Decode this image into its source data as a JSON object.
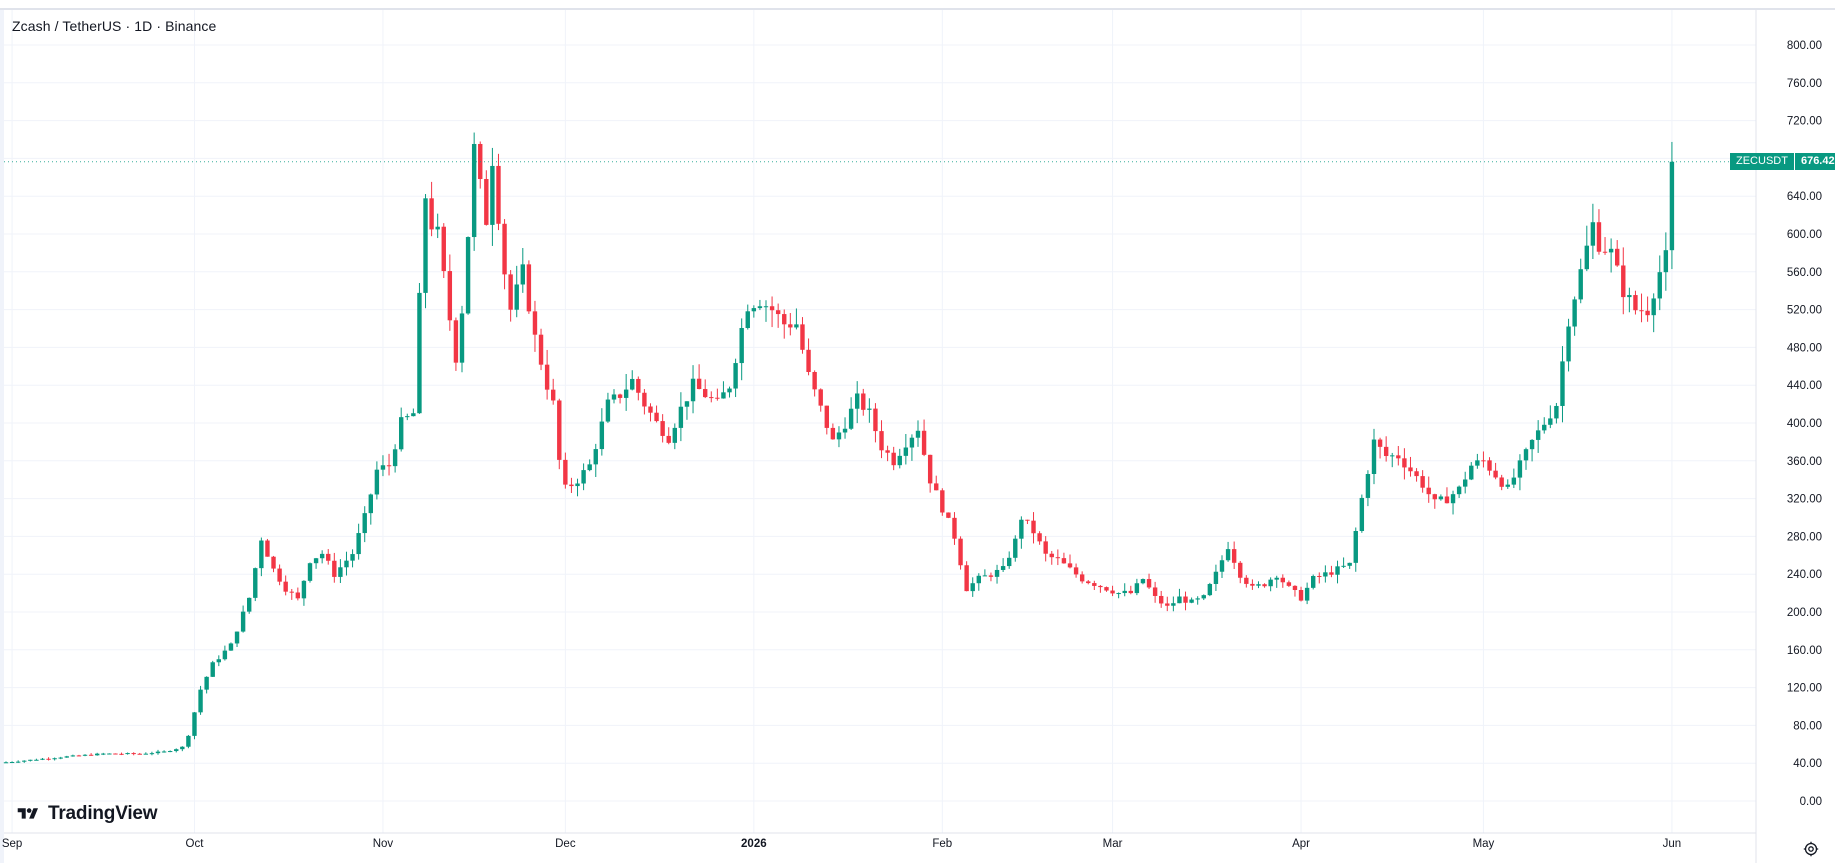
{
  "header": {
    "symbol_title": "Zcash / TetherUS · 1D · Binance"
  },
  "branding": {
    "logo_text": "TradingView"
  },
  "price_tag": {
    "symbol": "ZECUSDT",
    "value": "676.42"
  },
  "colors": {
    "up": "#089981",
    "down": "#f23645",
    "grid": "#f0f3fa",
    "text": "#131722"
  },
  "chart_data": {
    "type": "candlestick",
    "title": "Zcash / TetherUS · 1D · Binance",
    "y_ticks": [
      "800.00",
      "760.00",
      "720.00",
      "680.00",
      "640.00",
      "600.00",
      "560.00",
      "520.00",
      "480.00",
      "440.00",
      "400.00",
      "360.00",
      "320.00",
      "280.00",
      "240.00",
      "200.00",
      "160.00",
      "120.00",
      "80.00",
      "40.00",
      "0.00"
    ],
    "ylim": [
      0,
      800
    ],
    "x_ticks": [
      {
        "label": "Sep",
        "date": "2025-09-01"
      },
      {
        "label": "Oct",
        "date": "2025-10-01"
      },
      {
        "label": "Nov",
        "date": "2025-11-01"
      },
      {
        "label": "Dec",
        "date": "2025-12-01"
      },
      {
        "label": "2026",
        "date": "2026-01-01",
        "bold": true
      },
      {
        "label": "Feb",
        "date": "2026-02-01"
      },
      {
        "label": "Mar",
        "date": "2026-03-01"
      },
      {
        "label": "Apr",
        "date": "2026-04-01"
      },
      {
        "label": "May",
        "date": "2026-05-01"
      },
      {
        "label": "Jun",
        "date": "2026-06-01"
      }
    ],
    "last_price": 676.42,
    "close_anchors": [
      [
        "2025-08-31",
        41
      ],
      [
        "2025-09-10",
        47
      ],
      [
        "2025-09-16",
        50
      ],
      [
        "2025-09-22",
        50
      ],
      [
        "2025-09-26",
        52
      ],
      [
        "2025-09-29",
        57
      ],
      [
        "2025-09-30",
        70
      ],
      [
        "2025-10-02",
        118
      ],
      [
        "2025-10-04",
        145
      ],
      [
        "2025-10-07",
        165
      ],
      [
        "2025-10-10",
        215
      ],
      [
        "2025-10-12",
        278
      ],
      [
        "2025-10-14",
        245
      ],
      [
        "2025-10-16",
        225
      ],
      [
        "2025-10-18",
        213
      ],
      [
        "2025-10-20",
        255
      ],
      [
        "2025-10-22",
        262
      ],
      [
        "2025-10-24",
        240
      ],
      [
        "2025-10-27",
        262
      ],
      [
        "2025-10-29",
        300
      ],
      [
        "2025-10-31",
        350
      ],
      [
        "2025-11-02",
        355
      ],
      [
        "2025-11-04",
        400
      ],
      [
        "2025-11-06",
        410
      ],
      [
        "2025-11-07",
        530
      ],
      [
        "2025-11-08",
        640
      ],
      [
        "2025-11-09",
        610
      ],
      [
        "2025-11-10",
        600
      ],
      [
        "2025-11-12",
        510
      ],
      [
        "2025-11-13",
        470
      ],
      [
        "2025-11-14",
        520
      ],
      [
        "2025-11-15",
        600
      ],
      [
        "2025-11-16",
        690
      ],
      [
        "2025-11-17",
        650
      ],
      [
        "2025-11-18",
        615
      ],
      [
        "2025-11-19",
        680
      ],
      [
        "2025-11-21",
        560
      ],
      [
        "2025-11-22",
        520
      ],
      [
        "2025-11-24",
        560
      ],
      [
        "2025-11-26",
        490
      ],
      [
        "2025-11-28",
        440
      ],
      [
        "2025-11-29",
        420
      ],
      [
        "2025-11-30",
        360
      ],
      [
        "2025-12-01",
        330
      ],
      [
        "2025-12-03",
        340
      ],
      [
        "2025-12-05",
        355
      ],
      [
        "2025-12-08",
        420
      ],
      [
        "2025-12-10",
        430
      ],
      [
        "2025-12-12",
        445
      ],
      [
        "2025-12-14",
        420
      ],
      [
        "2025-12-16",
        400
      ],
      [
        "2025-12-18",
        385
      ],
      [
        "2025-12-20",
        415
      ],
      [
        "2025-12-22",
        440
      ],
      [
        "2025-12-24",
        430
      ],
      [
        "2025-12-26",
        420
      ],
      [
        "2025-12-28",
        440
      ],
      [
        "2025-12-30",
        500
      ],
      [
        "2025-12-31",
        525
      ],
      [
        "2026-01-02",
        530
      ],
      [
        "2026-01-04",
        520
      ],
      [
        "2026-01-06",
        505
      ],
      [
        "2026-01-08",
        505
      ],
      [
        "2026-01-10",
        450
      ],
      [
        "2026-01-12",
        415
      ],
      [
        "2026-01-14",
        380
      ],
      [
        "2026-01-16",
        400
      ],
      [
        "2026-01-18",
        425
      ],
      [
        "2026-01-20",
        410
      ],
      [
        "2026-01-22",
        375
      ],
      [
        "2026-01-24",
        360
      ],
      [
        "2026-01-26",
        380
      ],
      [
        "2026-01-28",
        395
      ],
      [
        "2026-01-30",
        340
      ],
      [
        "2026-02-01",
        310
      ],
      [
        "2026-02-03",
        280
      ],
      [
        "2026-02-05",
        225
      ],
      [
        "2026-02-07",
        235
      ],
      [
        "2026-02-09",
        240
      ],
      [
        "2026-02-11",
        245
      ],
      [
        "2026-02-13",
        275
      ],
      [
        "2026-02-14",
        300
      ],
      [
        "2026-02-16",
        285
      ],
      [
        "2026-02-18",
        260
      ],
      [
        "2026-02-20",
        255
      ],
      [
        "2026-02-22",
        245
      ],
      [
        "2026-02-24",
        235
      ],
      [
        "2026-02-26",
        230
      ],
      [
        "2026-02-28",
        225
      ],
      [
        "2026-03-02",
        220
      ],
      [
        "2026-03-04",
        220
      ],
      [
        "2026-03-06",
        235
      ],
      [
        "2026-03-08",
        215
      ],
      [
        "2026-03-10",
        205
      ],
      [
        "2026-03-12",
        215
      ],
      [
        "2026-03-14",
        210
      ],
      [
        "2026-03-16",
        215
      ],
      [
        "2026-03-18",
        240
      ],
      [
        "2026-03-20",
        270
      ],
      [
        "2026-03-22",
        240
      ],
      [
        "2026-03-24",
        225
      ],
      [
        "2026-03-26",
        230
      ],
      [
        "2026-03-28",
        240
      ],
      [
        "2026-03-30",
        225
      ],
      [
        "2026-04-01",
        215
      ],
      [
        "2026-04-03",
        235
      ],
      [
        "2026-04-05",
        240
      ],
      [
        "2026-04-07",
        245
      ],
      [
        "2026-04-09",
        250
      ],
      [
        "2026-04-11",
        320
      ],
      [
        "2026-04-13",
        380
      ],
      [
        "2026-04-15",
        365
      ],
      [
        "2026-04-17",
        365
      ],
      [
        "2026-04-19",
        350
      ],
      [
        "2026-04-21",
        335
      ],
      [
        "2026-04-23",
        315
      ],
      [
        "2026-04-25",
        320
      ],
      [
        "2026-04-27",
        330
      ],
      [
        "2026-04-29",
        355
      ],
      [
        "2026-05-01",
        360
      ],
      [
        "2026-05-03",
        345
      ],
      [
        "2026-05-05",
        330
      ],
      [
        "2026-05-07",
        355
      ],
      [
        "2026-05-09",
        380
      ],
      [
        "2026-05-11",
        400
      ],
      [
        "2026-05-13",
        420
      ],
      [
        "2026-05-15",
        510
      ],
      [
        "2026-05-17",
        560
      ],
      [
        "2026-05-19",
        610
      ],
      [
        "2026-05-20",
        590
      ],
      [
        "2026-05-22",
        580
      ],
      [
        "2026-05-24",
        540
      ],
      [
        "2026-05-26",
        520
      ],
      [
        "2026-05-28",
        520
      ],
      [
        "2026-05-30",
        560
      ],
      [
        "2026-05-31",
        575
      ],
      [
        "2026-06-01",
        676.42
      ]
    ]
  }
}
